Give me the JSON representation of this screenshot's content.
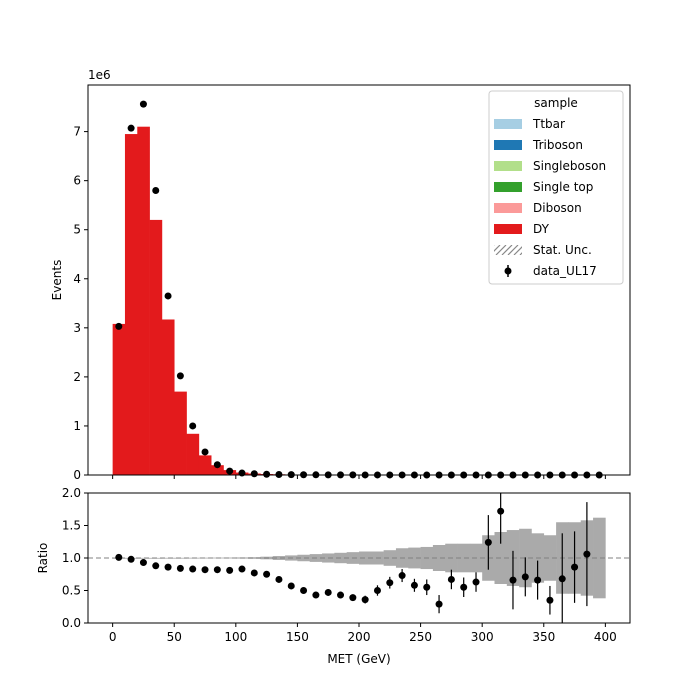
{
  "chart_data": [
    {
      "type": "bar",
      "panel": "main",
      "stacked": true,
      "xlabel": "",
      "ylabel": "Events",
      "scale_label": "1e6",
      "xlim": [
        -20,
        420
      ],
      "ylim": [
        0,
        7.95
      ],
      "y_multiplier": 1000000,
      "xticks": [
        0,
        50,
        100,
        150,
        200,
        250,
        300,
        350,
        400
      ],
      "yticks": [
        0,
        1,
        2,
        3,
        4,
        5,
        6,
        7
      ],
      "bin_edges": [
        0,
        10,
        20,
        30,
        40,
        50,
        60,
        70,
        80,
        90,
        100,
        110,
        120,
        130,
        140,
        150,
        160,
        170,
        180,
        190,
        200,
        210,
        220,
        230,
        240,
        250,
        260,
        270,
        280,
        290,
        300,
        310,
        320,
        330,
        340,
        350,
        360,
        370,
        380,
        390,
        400
      ],
      "grid": false,
      "legend": {
        "title": "sample",
        "placement": "top-right",
        "entries": [
          {
            "label": "Ttbar",
            "color": "#a6cee3",
            "kind": "patch"
          },
          {
            "label": "Triboson",
            "color": "#1f78b4",
            "kind": "patch"
          },
          {
            "label": "Singleboson",
            "color": "#b2df8a",
            "kind": "patch"
          },
          {
            "label": "Single top",
            "color": "#33a02c",
            "kind": "patch"
          },
          {
            "label": "Diboson",
            "color": "#fb9a99",
            "kind": "patch"
          },
          {
            "label": "DY",
            "color": "#e31a1c",
            "kind": "patch"
          },
          {
            "label": "Stat. Unc.",
            "color": "#888888",
            "kind": "hatch"
          },
          {
            "label": "data_UL17",
            "color": "#000000",
            "kind": "errorbar"
          }
        ]
      },
      "series": [
        {
          "name": "DY",
          "color": "#e31a1c",
          "values": [
            3.08,
            6.95,
            7.1,
            5.2,
            3.17,
            1.7,
            0.84,
            0.4,
            0.2,
            0.1,
            0.05,
            0.03,
            0.02,
            0.015,
            0.01,
            0.008,
            0.006,
            0.005,
            0.004,
            0.003,
            0.0025,
            0.002,
            0.0015,
            0.001,
            0.0008,
            0.0006,
            0.0005,
            0.0004,
            0.0003,
            0.0003,
            0.0002,
            0.0002,
            0.0001,
            0.0001,
            0.0001,
            0.0001,
            0.0001,
            0.0001,
            0.0001,
            0.0001
          ]
        },
        {
          "name": "data_UL17",
          "kind": "points",
          "color": "#000000",
          "values": [
            3.03,
            7.07,
            7.56,
            5.8,
            3.65,
            2.02,
            1.0,
            0.47,
            0.21,
            0.08,
            0.04,
            0.025,
            0.015,
            0.01,
            0.008,
            0.005,
            0.004,
            0.003,
            0.002,
            0.002,
            0.001,
            0.001,
            0.001,
            0.001,
            0.001,
            0.0005,
            0.0005,
            0.0005,
            0.0005,
            0.0005,
            0.0005,
            0.0005,
            0.0005,
            0.0005,
            0.0005,
            0.0005,
            0.0005,
            0.0005,
            0.0005,
            0.0005
          ]
        }
      ]
    },
    {
      "type": "scatter",
      "panel": "ratio",
      "xlabel": "MET (GeV)",
      "ylabel": "Ratio",
      "xlim": [
        -20,
        420
      ],
      "ylim": [
        0,
        2
      ],
      "xticks": [
        0,
        50,
        100,
        150,
        200,
        250,
        300,
        350,
        400
      ],
      "yticks": [
        0.0,
        0.5,
        1.0,
        1.5,
        2.0
      ],
      "ytick_labels": [
        "0.0",
        "0.5",
        "1.0",
        "1.5",
        "2.0"
      ],
      "reference_line": 1.0,
      "x": [
        5,
        15,
        25,
        35,
        45,
        55,
        65,
        75,
        85,
        95,
        105,
        115,
        125,
        135,
        145,
        155,
        165,
        175,
        185,
        195,
        205,
        215,
        225,
        235,
        245,
        255,
        265,
        275,
        285,
        295,
        305,
        315,
        325,
        335,
        345,
        355,
        365,
        375,
        385,
        395
      ],
      "ratio": [
        1.01,
        0.98,
        0.93,
        0.88,
        0.86,
        0.84,
        0.83,
        0.82,
        0.82,
        0.81,
        0.83,
        0.77,
        0.75,
        0.67,
        0.57,
        0.5,
        0.43,
        0.47,
        0.43,
        0.39,
        0.36,
        0.5,
        0.62,
        0.73,
        0.58,
        0.55,
        0.29,
        0.67,
        0.55,
        0.63,
        1.24,
        1.72,
        0.66,
        0.71,
        0.66,
        0.35,
        0.68,
        0.86,
        1.06,
        null
      ],
      "ratio_err": [
        0.003,
        0.003,
        0.003,
        0.003,
        0.003,
        0.003,
        0.004,
        0.005,
        0.006,
        0.008,
        0.01,
        0.015,
        0.02,
        0.03,
        0.04,
        0.04,
        0.04,
        0.05,
        0.05,
        0.05,
        0.06,
        0.08,
        0.09,
        0.1,
        0.1,
        0.12,
        0.14,
        0.15,
        0.15,
        0.15,
        0.42,
        0.5,
        0.45,
        0.3,
        0.3,
        0.22,
        0.7,
        0.55,
        0.8,
        0
      ],
      "stat_unc_band": [
        0.002,
        0.002,
        0.002,
        0.002,
        0.003,
        0.003,
        0.004,
        0.005,
        0.006,
        0.007,
        0.009,
        0.012,
        0.02,
        0.03,
        0.04,
        0.05,
        0.06,
        0.07,
        0.08,
        0.09,
        0.1,
        0.1,
        0.12,
        0.15,
        0.16,
        0.17,
        0.2,
        0.22,
        0.22,
        0.22,
        0.35,
        0.4,
        0.43,
        0.45,
        0.38,
        0.35,
        0.55,
        0.55,
        0.58,
        0.62
      ]
    }
  ]
}
